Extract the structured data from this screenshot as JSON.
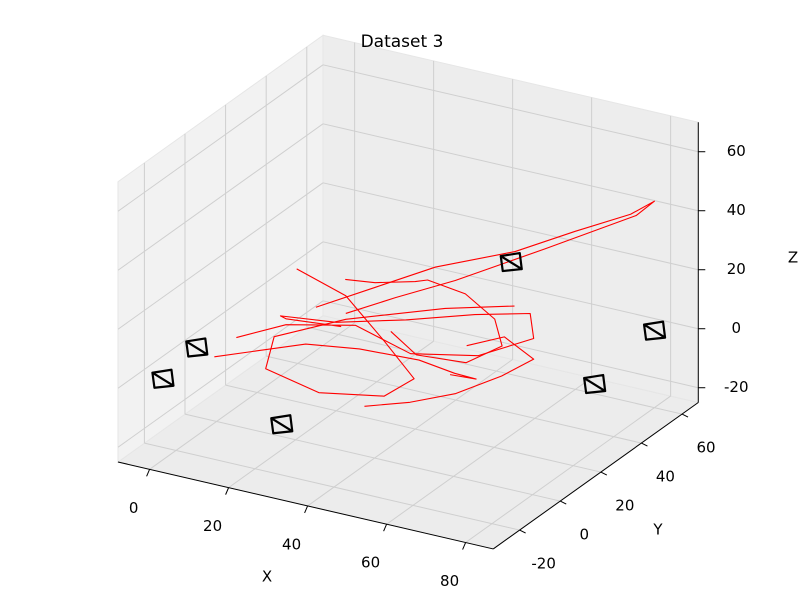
{
  "chart_data": {
    "type": "line3d",
    "title": "Dataset 3",
    "xlabel": "X",
    "ylabel": "Y",
    "zlabel": "Z",
    "xlim": [
      -8,
      87
    ],
    "ylim": [
      -33,
      68
    ],
    "zlim": [
      -25,
      70
    ],
    "xticks": [
      0,
      20,
      40,
      60,
      80
    ],
    "yticks": [
      -20,
      0,
      20,
      40,
      60
    ],
    "zticks": [
      -20,
      0,
      20,
      40,
      60
    ],
    "grid": true,
    "series": [
      {
        "color": "#ff0000",
        "x": [
          5,
          15,
          30,
          45,
          60,
          70,
          65,
          50,
          35,
          20,
          10,
          15,
          30
        ],
        "y": [
          0,
          5,
          10,
          8,
          12,
          20,
          28,
          30,
          25,
          20,
          12,
          5,
          3
        ],
        "z": [
          5,
          10,
          12,
          8,
          10,
          15,
          18,
          12,
          8,
          5,
          8,
          12,
          15
        ]
      },
      {
        "color": "#ff0000",
        "x": [
          20,
          30,
          40,
          55,
          65,
          75,
          80,
          78,
          60,
          45,
          35,
          25
        ],
        "y": [
          10,
          20,
          30,
          40,
          50,
          58,
          60,
          55,
          45,
          30,
          20,
          15
        ],
        "z": [
          15,
          20,
          25,
          30,
          35,
          40,
          45,
          42,
          30,
          22,
          18,
          12
        ]
      },
      {
        "color": "#ff0000",
        "x": [
          10,
          25,
          40,
          50,
          45,
          30,
          15,
          12,
          25,
          45,
          60
        ],
        "y": [
          20,
          15,
          5,
          0,
          -5,
          -8,
          -5,
          5,
          15,
          25,
          30
        ],
        "z": [
          20,
          18,
          12,
          5,
          0,
          -2,
          0,
          5,
          10,
          15,
          18
        ]
      },
      {
        "color": "#ff0000",
        "x": [
          30,
          35,
          40,
          38,
          45,
          55,
          62,
          58,
          48,
          40
        ],
        "y": [
          5,
          10,
          20,
          30,
          35,
          30,
          20,
          10,
          5,
          8
        ],
        "z": [
          30,
          28,
          25,
          20,
          15,
          12,
          10,
          8,
          10,
          14
        ]
      },
      {
        "color": "#ff0000",
        "x": [
          2,
          10,
          20,
          30,
          42,
          50,
          58,
          55
        ],
        "y": [
          -5,
          0,
          5,
          12,
          18,
          20,
          15,
          8
        ],
        "z": [
          0,
          2,
          5,
          3,
          0,
          -3,
          0,
          4
        ]
      },
      {
        "color": "#ff0000",
        "x": [
          40,
          50,
          58,
          66,
          70,
          60,
          52
        ],
        "y": [
          -5,
          -2,
          5,
          12,
          20,
          25,
          22
        ],
        "z": [
          -5,
          -2,
          0,
          5,
          8,
          10,
          6
        ]
      }
    ],
    "cameras": {
      "color": "#000000",
      "x": [
        0,
        -6,
        21,
        57,
        74,
        83
      ],
      "y": [
        -10,
        -15,
        -9,
        34,
        42,
        54
      ],
      "z": [
        5,
        -5,
        -15,
        30,
        -10,
        5
      ]
    }
  }
}
